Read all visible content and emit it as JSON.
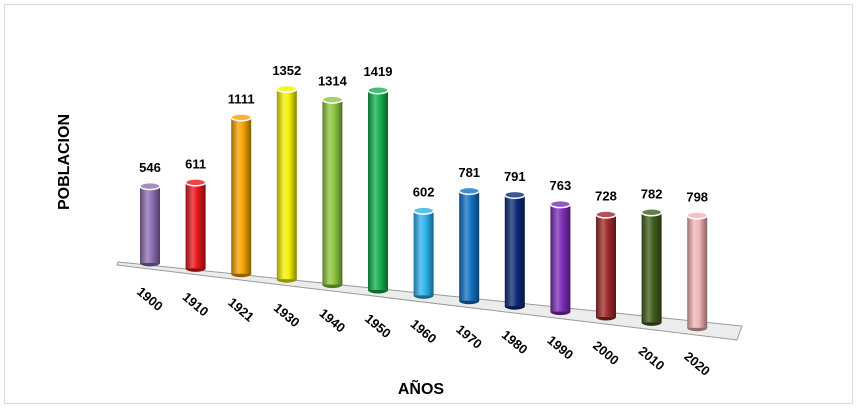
{
  "chart_data": {
    "type": "bar",
    "title": "",
    "xlabel": "AÑOS",
    "ylabel": "POBLACION",
    "categories": [
      "1900",
      "1910",
      "1921",
      "1930",
      "1940",
      "1950",
      "1960",
      "1970",
      "1980",
      "1990",
      "2000",
      "2010",
      "2020"
    ],
    "values": [
      546,
      611,
      1111,
      1352,
      1314,
      1419,
      602,
      781,
      791,
      763,
      728,
      782,
      798
    ],
    "value_labels": [
      "546",
      "611",
      "1111",
      "1352",
      "1314",
      "1419",
      "602",
      "781",
      "791",
      "763",
      "728",
      "782",
      "798"
    ],
    "colors": [
      "#8e6fb3",
      "#e8161a",
      "#f5a300",
      "#f2f200",
      "#8dc63f",
      "#16b04d",
      "#2db2ef",
      "#1272c4",
      "#0e2a78",
      "#7b2fb8",
      "#9e2a2a",
      "#3f5e1c",
      "#f2b4b4"
    ],
    "style": "3d-cylinder",
    "gridlines": false,
    "legend": "none"
  }
}
